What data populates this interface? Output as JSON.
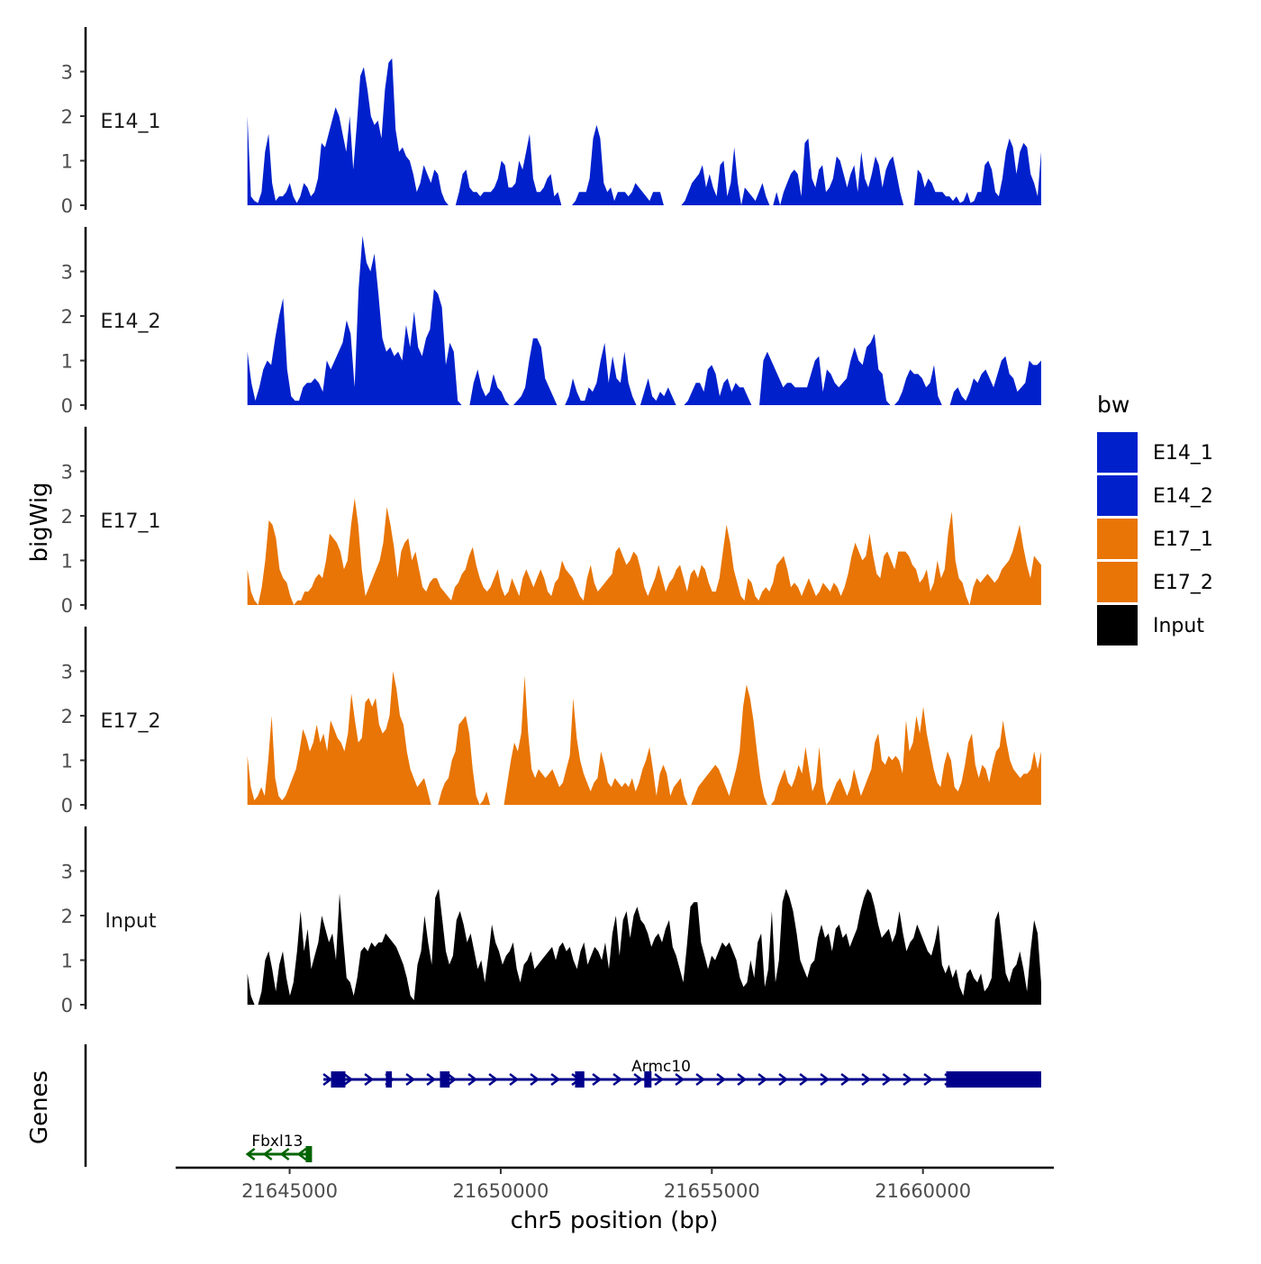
{
  "chart_data": {
    "type": "area",
    "chromosome": "chr5",
    "xlabel": "chr5 position (bp)",
    "ylabel": "bigWig",
    "genes_label": "Genes",
    "xlim": [
      21642300,
      21663100
    ],
    "x_ticks": [
      21645000,
      21650000,
      21655000,
      21660000
    ],
    "x_tick_labels": [
      "21645000",
      "21650000",
      "21655000",
      "21660000"
    ],
    "ylim": [
      0,
      4
    ],
    "y_ticks": [
      0,
      1,
      2,
      3
    ],
    "y_tick_labels": [
      "0",
      "1",
      "2",
      "3"
    ],
    "track_start": 21644000,
    "track_end": 21662800,
    "legend": {
      "title": "bw",
      "position": "right",
      "entries": [
        {
          "label": "E14_1",
          "color": "#0020CC"
        },
        {
          "label": "E14_2",
          "color": "#0020CC"
        },
        {
          "label": "E17_1",
          "color": "#E87506"
        },
        {
          "label": "E17_2",
          "color": "#E87506"
        },
        {
          "label": "Input",
          "color": "#000000"
        }
      ]
    },
    "series": [
      {
        "name": "E14_1",
        "color": "#0020CC",
        "values": [
          2.0,
          0.2,
          0.1,
          0.05,
          0.3,
          1.2,
          1.6,
          0.5,
          0.1,
          0.2,
          0.2,
          0.3,
          0.5,
          0.2,
          0.05,
          0.2,
          0.5,
          0.4,
          0.2,
          0.3,
          0.6,
          1.4,
          1.3,
          1.6,
          1.9,
          2.2,
          2.0,
          1.6,
          1.2,
          2.0,
          0.8,
          1.8,
          2.9,
          3.1,
          2.6,
          2.0,
          1.8,
          1.9,
          1.5,
          2.6,
          3.2,
          3.3,
          1.7,
          1.2,
          1.3,
          1.1,
          1.0,
          0.7,
          0.3,
          0.5,
          0.9,
          0.7,
          0.5,
          0.8,
          0.7,
          0.3,
          0.1,
          0.0,
          0.0,
          0.0,
          0.3,
          0.7,
          0.8,
          0.4,
          0.3,
          0.3,
          0.2,
          0.3,
          0.3,
          0.3,
          0.4,
          0.6,
          1.0,
          0.9,
          0.4,
          0.4,
          0.5,
          1.0,
          0.8,
          1.2,
          1.6,
          0.6,
          0.3,
          0.3,
          0.4,
          0.6,
          0.7,
          0.2,
          0.3,
          0.0,
          0.0,
          0.0,
          0.0,
          0.1,
          0.3,
          0.3,
          0.3,
          0.6,
          1.5,
          1.8,
          1.5,
          0.5,
          0.3,
          0.4,
          0.1,
          0.3,
          0.3,
          0.3,
          0.2,
          0.3,
          0.5,
          0.4,
          0.3,
          0.2,
          0.1,
          0.3,
          0.3,
          0.3,
          0.0,
          0.0,
          0.0,
          0.0,
          0.0,
          0.0,
          0.1,
          0.3,
          0.5,
          0.6,
          0.7,
          0.9,
          0.4,
          0.7,
          0.4,
          0.2,
          0.9,
          1.0,
          0.2,
          0.5,
          1.3,
          0.5,
          0.0,
          0.4,
          0.3,
          0.2,
          0.1,
          0.3,
          0.5,
          0.2,
          0.0,
          0.0,
          0.3,
          0.0,
          0.3,
          0.5,
          0.7,
          0.8,
          0.7,
          0.2,
          1.4,
          1.5,
          0.6,
          0.4,
          0.8,
          0.9,
          0.3,
          0.4,
          0.6,
          1.1,
          1.0,
          0.7,
          0.4,
          0.7,
          0.9,
          0.3,
          1.2,
          0.6,
          0.4,
          0.7,
          1.1,
          0.9,
          0.4,
          0.8,
          1.0,
          1.1,
          0.7,
          0.3,
          0.0,
          0.0,
          0.0,
          0.0,
          0.8,
          0.7,
          0.4,
          0.6,
          0.5,
          0.3,
          0.3,
          0.3,
          0.2,
          0.2,
          0.1,
          0.2,
          0.05,
          0.1,
          0.3,
          0.05,
          0.1,
          0.3,
          0.3,
          0.9,
          1.0,
          0.8,
          0.3,
          0.2,
          0.6,
          1.2,
          1.5,
          1.3,
          0.7,
          1.2,
          1.4,
          1.3,
          0.7,
          0.5,
          0.2,
          1.2
        ]
      },
      {
        "name": "E14_2",
        "color": "#0020CC",
        "values": [
          1.2,
          0.5,
          0.1,
          0.4,
          0.8,
          1.0,
          0.9,
          1.5,
          2.0,
          2.4,
          0.8,
          0.2,
          0.1,
          0.1,
          0.4,
          0.5,
          0.5,
          0.6,
          0.5,
          0.3,
          1.0,
          0.8,
          1.0,
          1.2,
          1.4,
          1.9,
          1.6,
          0.4,
          2.6,
          3.8,
          3.2,
          3.0,
          3.4,
          2.5,
          1.5,
          1.2,
          1.3,
          1.1,
          1.2,
          1.0,
          1.8,
          1.3,
          2.1,
          1.3,
          1.1,
          1.5,
          1.7,
          2.6,
          2.5,
          2.2,
          0.9,
          1.4,
          1.2,
          0.1,
          0.0,
          0.0,
          0.0,
          0.5,
          0.8,
          0.4,
          0.2,
          0.3,
          0.7,
          0.4,
          0.3,
          0.1,
          0.0,
          0.0,
          0.1,
          0.2,
          0.4,
          1.0,
          1.5,
          1.5,
          1.3,
          0.6,
          0.4,
          0.2,
          0.0,
          0.0,
          0.0,
          0.2,
          0.6,
          0.3,
          0.1,
          0.1,
          0.4,
          0.3,
          0.5,
          1.0,
          1.4,
          0.5,
          1.1,
          0.6,
          0.5,
          1.2,
          0.5,
          0.2,
          0.0,
          0.0,
          0.3,
          0.6,
          0.2,
          0.1,
          0.3,
          0.2,
          0.4,
          0.2,
          0.0,
          0.0,
          0.0,
          0.1,
          0.3,
          0.5,
          0.5,
          0.3,
          0.8,
          0.9,
          0.7,
          0.2,
          0.5,
          0.6,
          0.3,
          0.5,
          0.4,
          0.4,
          0.2,
          0.0,
          0.0,
          0.0,
          1.0,
          1.2,
          1.0,
          0.8,
          0.6,
          0.4,
          0.5,
          0.5,
          0.4,
          0.4,
          0.4,
          0.4,
          0.7,
          1.0,
          1.1,
          0.3,
          0.8,
          0.7,
          0.5,
          0.4,
          0.5,
          0.6,
          1.0,
          1.3,
          1.0,
          0.9,
          1.3,
          1.4,
          1.6,
          0.8,
          0.7,
          0.1,
          0.0,
          0.0,
          0.1,
          0.3,
          0.6,
          0.8,
          0.7,
          0.7,
          0.6,
          0.4,
          0.5,
          0.9,
          0.2,
          0.0,
          0.0,
          0.0,
          0.3,
          0.4,
          0.2,
          0.1,
          0.3,
          0.6,
          0.5,
          0.7,
          0.8,
          0.6,
          0.4,
          0.7,
          1.0,
          1.1,
          0.7,
          0.6,
          0.3,
          0.4,
          0.5,
          1.0,
          0.9,
          0.9,
          1.0
        ]
      },
      {
        "name": "E17_1",
        "color": "#E87506",
        "values": [
          0.8,
          0.3,
          0.1,
          0.0,
          0.4,
          1.0,
          1.9,
          1.8,
          1.5,
          0.8,
          0.6,
          0.5,
          0.2,
          0.0,
          0.1,
          0.1,
          0.3,
          0.3,
          0.4,
          0.6,
          0.7,
          0.6,
          1.0,
          1.6,
          1.5,
          1.4,
          1.2,
          0.8,
          1.0,
          1.8,
          2.4,
          1.8,
          0.8,
          0.2,
          0.4,
          0.6,
          0.8,
          1.0,
          1.4,
          2.2,
          1.8,
          1.3,
          0.6,
          1.2,
          1.4,
          1.5,
          1.0,
          1.2,
          0.8,
          0.4,
          0.3,
          0.5,
          0.6,
          0.6,
          0.4,
          0.3,
          0.2,
          0.1,
          0.4,
          0.5,
          0.7,
          0.8,
          1.1,
          1.3,
          0.9,
          0.6,
          0.4,
          0.3,
          0.4,
          0.6,
          0.8,
          0.4,
          0.2,
          0.3,
          0.6,
          0.4,
          0.2,
          0.6,
          0.8,
          0.6,
          0.4,
          0.6,
          0.8,
          0.6,
          0.3,
          0.2,
          0.5,
          0.6,
          1.0,
          0.8,
          0.7,
          0.6,
          0.4,
          0.2,
          0.1,
          0.6,
          0.9,
          0.5,
          0.3,
          0.4,
          0.5,
          0.6,
          0.7,
          1.2,
          1.3,
          1.1,
          0.9,
          1.0,
          1.2,
          1.1,
          0.8,
          0.4,
          0.2,
          0.4,
          0.6,
          0.9,
          0.6,
          0.3,
          0.5,
          0.6,
          0.8,
          0.9,
          0.6,
          0.3,
          0.7,
          0.8,
          0.6,
          0.9,
          0.8,
          0.5,
          0.3,
          0.3,
          0.6,
          1.2,
          1.8,
          1.4,
          0.8,
          0.5,
          0.2,
          0.1,
          0.6,
          0.5,
          0.2,
          0.1,
          0.3,
          0.4,
          0.3,
          0.5,
          0.9,
          1.0,
          1.1,
          0.8,
          0.4,
          0.5,
          0.4,
          0.2,
          0.4,
          0.6,
          0.4,
          0.2,
          0.3,
          0.5,
          0.4,
          0.3,
          0.5,
          0.4,
          0.2,
          0.4,
          0.7,
          1.1,
          1.4,
          1.2,
          1.0,
          1.1,
          1.6,
          1.1,
          0.7,
          0.6,
          1.1,
          1.2,
          1.0,
          0.8,
          1.2,
          1.2,
          1.2,
          1.1,
          0.9,
          0.8,
          0.5,
          0.6,
          0.8,
          0.3,
          0.5,
          1.0,
          0.6,
          0.8,
          1.6,
          2.1,
          1.0,
          0.6,
          0.5,
          0.2,
          0.0,
          0.4,
          0.6,
          0.5,
          0.6,
          0.7,
          0.6,
          0.5,
          0.6,
          0.8,
          0.9,
          1.0,
          1.2,
          1.5,
          1.8,
          1.3,
          0.9,
          0.6,
          1.1,
          1.0,
          0.9
        ]
      },
      {
        "name": "E17_2",
        "color": "#E87506",
        "values": [
          1.1,
          0.4,
          0.1,
          0.2,
          0.4,
          0.2,
          1.0,
          2.0,
          0.6,
          0.2,
          0.1,
          0.2,
          0.4,
          0.6,
          0.8,
          1.2,
          1.7,
          1.5,
          1.2,
          1.4,
          1.8,
          1.4,
          1.6,
          1.2,
          1.9,
          1.7,
          1.5,
          1.4,
          1.2,
          1.6,
          2.5,
          1.9,
          1.4,
          1.5,
          2.3,
          2.4,
          2.2,
          2.4,
          1.8,
          1.6,
          1.7,
          2.0,
          3.0,
          2.6,
          2.0,
          1.8,
          1.2,
          0.8,
          0.6,
          0.4,
          0.5,
          0.6,
          0.3,
          0.0,
          0.0,
          0.0,
          0.3,
          0.5,
          0.6,
          1.0,
          1.2,
          1.8,
          1.9,
          2.0,
          1.6,
          0.8,
          0.2,
          0.0,
          0.1,
          0.3,
          0.0,
          0.0,
          0.0,
          0.0,
          0.0,
          0.5,
          1.0,
          1.4,
          1.2,
          1.6,
          2.9,
          1.6,
          0.8,
          0.6,
          0.8,
          0.7,
          0.6,
          0.7,
          0.8,
          0.6,
          0.4,
          0.5,
          0.8,
          1.1,
          2.4,
          1.5,
          1.0,
          0.7,
          0.5,
          0.3,
          0.5,
          0.6,
          1.2,
          0.9,
          0.5,
          0.4,
          0.6,
          0.5,
          0.4,
          0.5,
          0.4,
          0.6,
          0.3,
          0.5,
          0.8,
          1.0,
          1.3,
          0.8,
          0.2,
          0.7,
          0.9,
          0.7,
          0.2,
          0.4,
          0.5,
          0.6,
          0.2,
          0.0,
          0.0,
          0.2,
          0.4,
          0.5,
          0.6,
          0.7,
          0.8,
          0.9,
          0.8,
          0.6,
          0.4,
          0.2,
          0.5,
          0.8,
          1.2,
          2.2,
          2.7,
          2.4,
          1.9,
          1.2,
          0.6,
          0.2,
          0.0,
          0.0,
          0.1,
          0.4,
          0.6,
          0.8,
          0.5,
          0.4,
          0.6,
          0.9,
          0.7,
          1.3,
          0.8,
          0.3,
          0.5,
          1.3,
          0.4,
          0.0,
          0.1,
          0.3,
          0.5,
          0.6,
          0.4,
          0.2,
          0.4,
          0.8,
          0.5,
          0.2,
          0.4,
          0.6,
          0.8,
          1.4,
          1.6,
          1.0,
          0.9,
          1.1,
          1.0,
          1.1,
          1.0,
          0.7,
          1.9,
          1.2,
          1.4,
          2.0,
          1.6,
          2.2,
          1.6,
          1.2,
          0.8,
          0.5,
          0.4,
          0.9,
          1.2,
          1.0,
          0.4,
          0.3,
          0.5,
          0.9,
          1.4,
          1.6,
          0.9,
          0.6,
          0.9,
          0.8,
          0.5,
          0.9,
          1.2,
          1.3,
          1.9,
          1.4,
          1.0,
          0.8,
          0.7,
          0.6,
          0.7,
          0.7,
          0.8,
          1.2,
          0.8,
          1.2
        ]
      },
      {
        "name": "Input",
        "color": "#000000",
        "values": [
          0.7,
          0.2,
          0.0,
          0.0,
          0.3,
          1.0,
          1.2,
          0.8,
          0.3,
          0.9,
          1.2,
          0.6,
          0.2,
          0.5,
          1.2,
          2.1,
          1.2,
          1.7,
          0.8,
          1.1,
          1.4,
          2.0,
          1.7,
          1.4,
          1.6,
          1.0,
          2.5,
          1.5,
          0.6,
          0.5,
          0.2,
          0.6,
          1.2,
          1.3,
          1.2,
          1.4,
          1.3,
          1.4,
          1.4,
          1.6,
          1.5,
          1.4,
          1.3,
          1.1,
          0.9,
          0.6,
          0.2,
          0.1,
          0.9,
          1.2,
          2.0,
          1.4,
          0.9,
          2.4,
          2.6,
          1.9,
          1.2,
          0.9,
          1.1,
          1.9,
          2.1,
          1.8,
          1.4,
          1.6,
          1.2,
          0.8,
          1.0,
          0.5,
          1.1,
          1.8,
          1.4,
          1.2,
          0.9,
          1.1,
          1.2,
          1.4,
          0.8,
          0.5,
          0.9,
          1.0,
          1.2,
          0.8,
          0.9,
          1.0,
          1.1,
          1.2,
          1.3,
          1.0,
          1.3,
          1.4,
          1.2,
          1.3,
          1.0,
          0.8,
          1.2,
          1.4,
          0.9,
          1.1,
          1.3,
          1.2,
          1.0,
          1.4,
          0.8,
          1.6,
          2.0,
          1.1,
          1.9,
          2.1,
          1.5,
          2.0,
          2.2,
          1.9,
          1.8,
          1.6,
          1.3,
          1.5,
          1.6,
          1.4,
          1.7,
          1.9,
          1.3,
          1.1,
          0.8,
          0.5,
          1.3,
          2.2,
          2.3,
          2.3,
          1.4,
          1.1,
          0.8,
          1.1,
          1.0,
          1.2,
          1.4,
          1.3,
          1.4,
          1.2,
          1.0,
          0.6,
          0.4,
          0.5,
          1.0,
          0.6,
          1.4,
          1.6,
          0.4,
          0.8,
          2.1,
          0.5,
          1.0,
          2.3,
          2.6,
          2.4,
          2.1,
          1.6,
          1.0,
          0.8,
          0.6,
          0.9,
          1.0,
          1.5,
          1.8,
          1.5,
          1.6,
          1.2,
          1.7,
          1.8,
          1.5,
          1.6,
          1.3,
          1.5,
          1.7,
          2.1,
          2.4,
          2.6,
          2.5,
          2.2,
          1.8,
          1.5,
          1.6,
          1.7,
          1.4,
          1.6,
          2.1,
          1.6,
          1.2,
          1.4,
          1.5,
          1.8,
          1.6,
          1.4,
          1.2,
          1.1,
          1.4,
          1.8,
          0.9,
          0.7,
          0.9,
          0.6,
          0.8,
          0.4,
          0.2,
          0.7,
          0.8,
          0.6,
          0.5,
          0.7,
          0.3,
          0.4,
          0.6,
          1.9,
          2.1,
          1.4,
          0.7,
          0.5,
          0.8,
          0.9,
          1.2,
          0.8,
          0.3,
          1.2,
          1.9,
          1.6,
          0.5
        ]
      }
    ],
    "genes": [
      {
        "name": "Armc10",
        "strand": "+",
        "start": 21645800,
        "end": 21662800,
        "color": "#00008B",
        "exons": [
          [
            21645980,
            21646320
          ],
          [
            21647280,
            21647420
          ],
          [
            21648560,
            21648790
          ],
          [
            21651760,
            21651980
          ],
          [
            21653400,
            21653570
          ],
          [
            21660550,
            21662800
          ]
        ]
      },
      {
        "name": "Fbxl13",
        "strand": "-",
        "start": 21644000,
        "end": 21645500,
        "color": "#006400",
        "exons": [
          [
            21645380,
            21645530
          ]
        ]
      }
    ]
  }
}
